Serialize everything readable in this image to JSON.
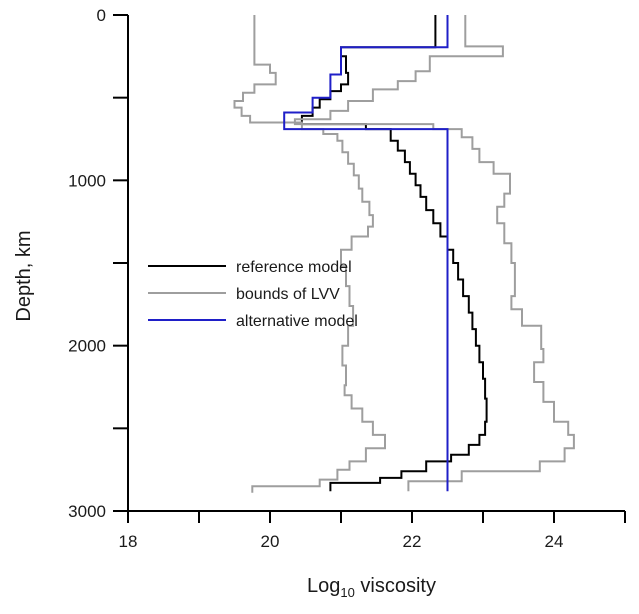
{
  "chart_data": {
    "type": "line",
    "title": "",
    "xlabel": "Log",
    "xlabel_sub": "10",
    "xlabel_rest": " viscosity",
    "ylabel": "Depth, km",
    "xlim": [
      18,
      25
    ],
    "ylim": [
      0,
      3000
    ],
    "y_inverted": true,
    "xticks": [
      18,
      20,
      22,
      24
    ],
    "xtick_labels": [
      "18",
      "20",
      "22",
      "24"
    ],
    "yticks": [
      0,
      1000,
      2000,
      3000
    ],
    "ytick_labels": [
      "0",
      "1000",
      "2000",
      "3000"
    ],
    "x_minor_step": 1,
    "y_minor_step": 500,
    "grid": false,
    "legend_position": "center-left",
    "series": [
      {
        "name": "reference model",
        "color": "#000000",
        "step": "y",
        "points": [
          [
            22.33,
            0
          ],
          [
            22.33,
            195
          ],
          [
            21.0,
            195
          ],
          [
            21.0,
            250
          ],
          [
            21.07,
            250
          ],
          [
            21.07,
            350
          ],
          [
            21.1,
            350
          ],
          [
            21.1,
            420
          ],
          [
            21.0,
            420
          ],
          [
            21.0,
            460
          ],
          [
            20.85,
            460
          ],
          [
            20.85,
            510
          ],
          [
            20.7,
            510
          ],
          [
            20.7,
            560
          ],
          [
            20.6,
            560
          ],
          [
            20.6,
            610
          ],
          [
            20.45,
            610
          ],
          [
            20.45,
            660
          ],
          [
            21.35,
            660
          ],
          [
            21.35,
            690
          ],
          [
            21.7,
            690
          ],
          [
            21.7,
            760
          ],
          [
            21.8,
            760
          ],
          [
            21.8,
            820
          ],
          [
            21.9,
            820
          ],
          [
            21.9,
            890
          ],
          [
            21.97,
            890
          ],
          [
            21.97,
            960
          ],
          [
            22.05,
            960
          ],
          [
            22.05,
            1030
          ],
          [
            22.12,
            1030
          ],
          [
            22.12,
            1100
          ],
          [
            22.2,
            1100
          ],
          [
            22.2,
            1180
          ],
          [
            22.3,
            1180
          ],
          [
            22.3,
            1260
          ],
          [
            22.4,
            1260
          ],
          [
            22.4,
            1340
          ],
          [
            22.5,
            1340
          ],
          [
            22.5,
            1420
          ],
          [
            22.58,
            1420
          ],
          [
            22.58,
            1500
          ],
          [
            22.65,
            1500
          ],
          [
            22.65,
            1600
          ],
          [
            22.72,
            1600
          ],
          [
            22.72,
            1700
          ],
          [
            22.8,
            1700
          ],
          [
            22.8,
            1800
          ],
          [
            22.85,
            1800
          ],
          [
            22.85,
            1900
          ],
          [
            22.9,
            1900
          ],
          [
            22.9,
            2000
          ],
          [
            22.95,
            2000
          ],
          [
            22.95,
            2100
          ],
          [
            23.0,
            2100
          ],
          [
            23.0,
            2200
          ],
          [
            23.03,
            2200
          ],
          [
            23.03,
            2320
          ],
          [
            23.05,
            2320
          ],
          [
            23.05,
            2460
          ],
          [
            23.03,
            2460
          ],
          [
            23.03,
            2540
          ],
          [
            22.95,
            2540
          ],
          [
            22.95,
            2600
          ],
          [
            22.8,
            2600
          ],
          [
            22.8,
            2660
          ],
          [
            22.55,
            2660
          ],
          [
            22.55,
            2700
          ],
          [
            22.2,
            2700
          ],
          [
            22.2,
            2760
          ],
          [
            21.85,
            2760
          ],
          [
            21.85,
            2800
          ],
          [
            21.55,
            2800
          ],
          [
            21.55,
            2830
          ],
          [
            20.85,
            2830
          ],
          [
            20.85,
            2880
          ]
        ]
      },
      {
        "name": "bounds of LVV",
        "color": "#9e9e9e",
        "step": "y",
        "points": [
          [
            19.78,
            0
          ],
          [
            19.78,
            300
          ],
          [
            20.0,
            300
          ],
          [
            20.0,
            350
          ],
          [
            20.08,
            350
          ],
          [
            20.08,
            420
          ],
          [
            19.78,
            420
          ],
          [
            19.78,
            470
          ],
          [
            19.62,
            470
          ],
          [
            19.62,
            520
          ],
          [
            19.5,
            520
          ],
          [
            19.5,
            560
          ],
          [
            19.6,
            560
          ],
          [
            19.6,
            610
          ],
          [
            19.72,
            610
          ],
          [
            19.72,
            650
          ],
          [
            20.45,
            650
          ],
          [
            20.45,
            690
          ],
          [
            20.75,
            690
          ],
          [
            20.75,
            720
          ],
          [
            20.95,
            720
          ],
          [
            20.95,
            760
          ],
          [
            21.02,
            760
          ],
          [
            21.02,
            830
          ],
          [
            21.1,
            830
          ],
          [
            21.1,
            900
          ],
          [
            21.18,
            900
          ],
          [
            21.18,
            970
          ],
          [
            21.25,
            970
          ],
          [
            21.25,
            1050
          ],
          [
            21.3,
            1050
          ],
          [
            21.3,
            1130
          ],
          [
            21.4,
            1130
          ],
          [
            21.4,
            1210
          ],
          [
            21.45,
            1210
          ],
          [
            21.45,
            1280
          ],
          [
            21.38,
            1280
          ],
          [
            21.38,
            1340
          ],
          [
            21.15,
            1340
          ],
          [
            21.15,
            1420
          ],
          [
            21.0,
            1420
          ],
          [
            21.0,
            1520
          ],
          [
            21.07,
            1520
          ],
          [
            21.07,
            1640
          ],
          [
            21.12,
            1640
          ],
          [
            21.12,
            1760
          ],
          [
            21.17,
            1760
          ],
          [
            21.17,
            1880
          ],
          [
            21.1,
            1880
          ],
          [
            21.1,
            2000
          ],
          [
            21.02,
            2000
          ],
          [
            21.02,
            2120
          ],
          [
            21.07,
            2120
          ],
          [
            21.07,
            2240
          ],
          [
            21.05,
            2240
          ],
          [
            21.05,
            2300
          ],
          [
            21.15,
            2300
          ],
          [
            21.15,
            2380
          ],
          [
            21.3,
            2380
          ],
          [
            21.3,
            2460
          ],
          [
            21.45,
            2460
          ],
          [
            21.45,
            2540
          ],
          [
            21.62,
            2540
          ],
          [
            21.62,
            2620
          ],
          [
            21.35,
            2620
          ],
          [
            21.35,
            2700
          ],
          [
            21.12,
            2700
          ],
          [
            21.12,
            2750
          ],
          [
            20.95,
            2750
          ],
          [
            20.95,
            2810
          ],
          [
            20.7,
            2810
          ],
          [
            20.7,
            2850
          ],
          [
            19.75,
            2850
          ],
          [
            19.75,
            2890
          ]
        ]
      },
      {
        "name": "",
        "color": "#9e9e9e",
        "step": "y",
        "points": [
          [
            22.75,
            0
          ],
          [
            22.75,
            190
          ],
          [
            23.28,
            190
          ],
          [
            23.28,
            250
          ],
          [
            22.25,
            250
          ],
          [
            22.25,
            340
          ],
          [
            22.05,
            340
          ],
          [
            22.05,
            400
          ],
          [
            21.8,
            400
          ],
          [
            21.8,
            450
          ],
          [
            21.45,
            450
          ],
          [
            21.45,
            520
          ],
          [
            21.1,
            520
          ],
          [
            21.1,
            580
          ],
          [
            20.85,
            580
          ],
          [
            20.85,
            630
          ],
          [
            20.35,
            630
          ],
          [
            20.35,
            660
          ],
          [
            22.3,
            660
          ],
          [
            22.3,
            690
          ],
          [
            22.7,
            690
          ],
          [
            22.7,
            740
          ],
          [
            22.85,
            740
          ],
          [
            22.85,
            810
          ],
          [
            22.95,
            810
          ],
          [
            22.95,
            890
          ],
          [
            23.15,
            890
          ],
          [
            23.15,
            960
          ],
          [
            23.38,
            960
          ],
          [
            23.38,
            1080
          ],
          [
            23.3,
            1080
          ],
          [
            23.3,
            1160
          ],
          [
            23.2,
            1160
          ],
          [
            23.2,
            1260
          ],
          [
            23.3,
            1260
          ],
          [
            23.3,
            1380
          ],
          [
            23.4,
            1380
          ],
          [
            23.4,
            1500
          ],
          [
            23.45,
            1500
          ],
          [
            23.45,
            1700
          ],
          [
            23.4,
            1700
          ],
          [
            23.4,
            1780
          ],
          [
            23.55,
            1780
          ],
          [
            23.55,
            1880
          ],
          [
            23.82,
            1880
          ],
          [
            23.82,
            2020
          ],
          [
            23.85,
            2020
          ],
          [
            23.85,
            2100
          ],
          [
            23.72,
            2100
          ],
          [
            23.72,
            2220
          ],
          [
            23.85,
            2220
          ],
          [
            23.85,
            2340
          ],
          [
            24.0,
            2340
          ],
          [
            24.0,
            2460
          ],
          [
            24.2,
            2460
          ],
          [
            24.2,
            2540
          ],
          [
            24.28,
            2540
          ],
          [
            24.28,
            2620
          ],
          [
            24.15,
            2620
          ],
          [
            24.15,
            2700
          ],
          [
            23.8,
            2700
          ],
          [
            23.8,
            2760
          ],
          [
            22.7,
            2760
          ],
          [
            22.7,
            2820
          ],
          [
            21.95,
            2820
          ],
          [
            21.95,
            2880
          ]
        ]
      },
      {
        "name": "alternative model",
        "color": "#1f1fc8",
        "step": "y",
        "points": [
          [
            22.5,
            0
          ],
          [
            22.5,
            195
          ],
          [
            21.0,
            195
          ],
          [
            21.0,
            360
          ],
          [
            20.85,
            360
          ],
          [
            20.85,
            500
          ],
          [
            20.6,
            500
          ],
          [
            20.6,
            590
          ],
          [
            20.2,
            590
          ],
          [
            20.2,
            690
          ],
          [
            22.5,
            690
          ],
          [
            22.5,
            2880
          ]
        ]
      }
    ],
    "legend_items": [
      "reference model",
      "bounds of LVV",
      "alternative model"
    ]
  }
}
